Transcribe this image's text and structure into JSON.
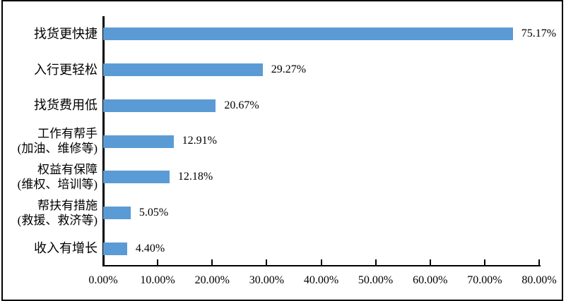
{
  "figure": {
    "background_color": "#ffffff",
    "border_color": "#000000"
  },
  "chart_data": {
    "type": "bar",
    "orientation": "horizontal",
    "title": "",
    "xlabel": "",
    "ylabel": "",
    "grid": false,
    "legend": false,
    "bar_color": "#5B9BD5",
    "axis_color": "#000000",
    "text_color": "#000000",
    "categories": [
      "找货更快捷",
      "入行更轻松",
      "找货费用低",
      "工作有帮手\n(加油、维修等)",
      "权益有保障\n(维权、培训等)",
      "帮扶有措施\n(救援、救济等)",
      "收入有增长"
    ],
    "values": [
      75.17,
      29.27,
      20.67,
      12.91,
      12.18,
      5.05,
      4.4
    ],
    "data_labels": [
      "75.17%",
      "29.27%",
      "20.67%",
      "12.91%",
      "12.18%",
      "5.05%",
      "4.40%"
    ],
    "xlim": [
      0,
      80
    ],
    "x_ticks": [
      {
        "value": 0,
        "label": "0.00%"
      },
      {
        "value": 10,
        "label": "10.00%"
      },
      {
        "value": 20,
        "label": "20.00%"
      },
      {
        "value": 30,
        "label": "30.00%"
      },
      {
        "value": 40,
        "label": "40.00%"
      },
      {
        "value": 50,
        "label": "50.00%"
      },
      {
        "value": 60,
        "label": "60.00%"
      },
      {
        "value": 70,
        "label": "70.00%"
      },
      {
        "value": 80,
        "label": "80.00%"
      }
    ]
  }
}
